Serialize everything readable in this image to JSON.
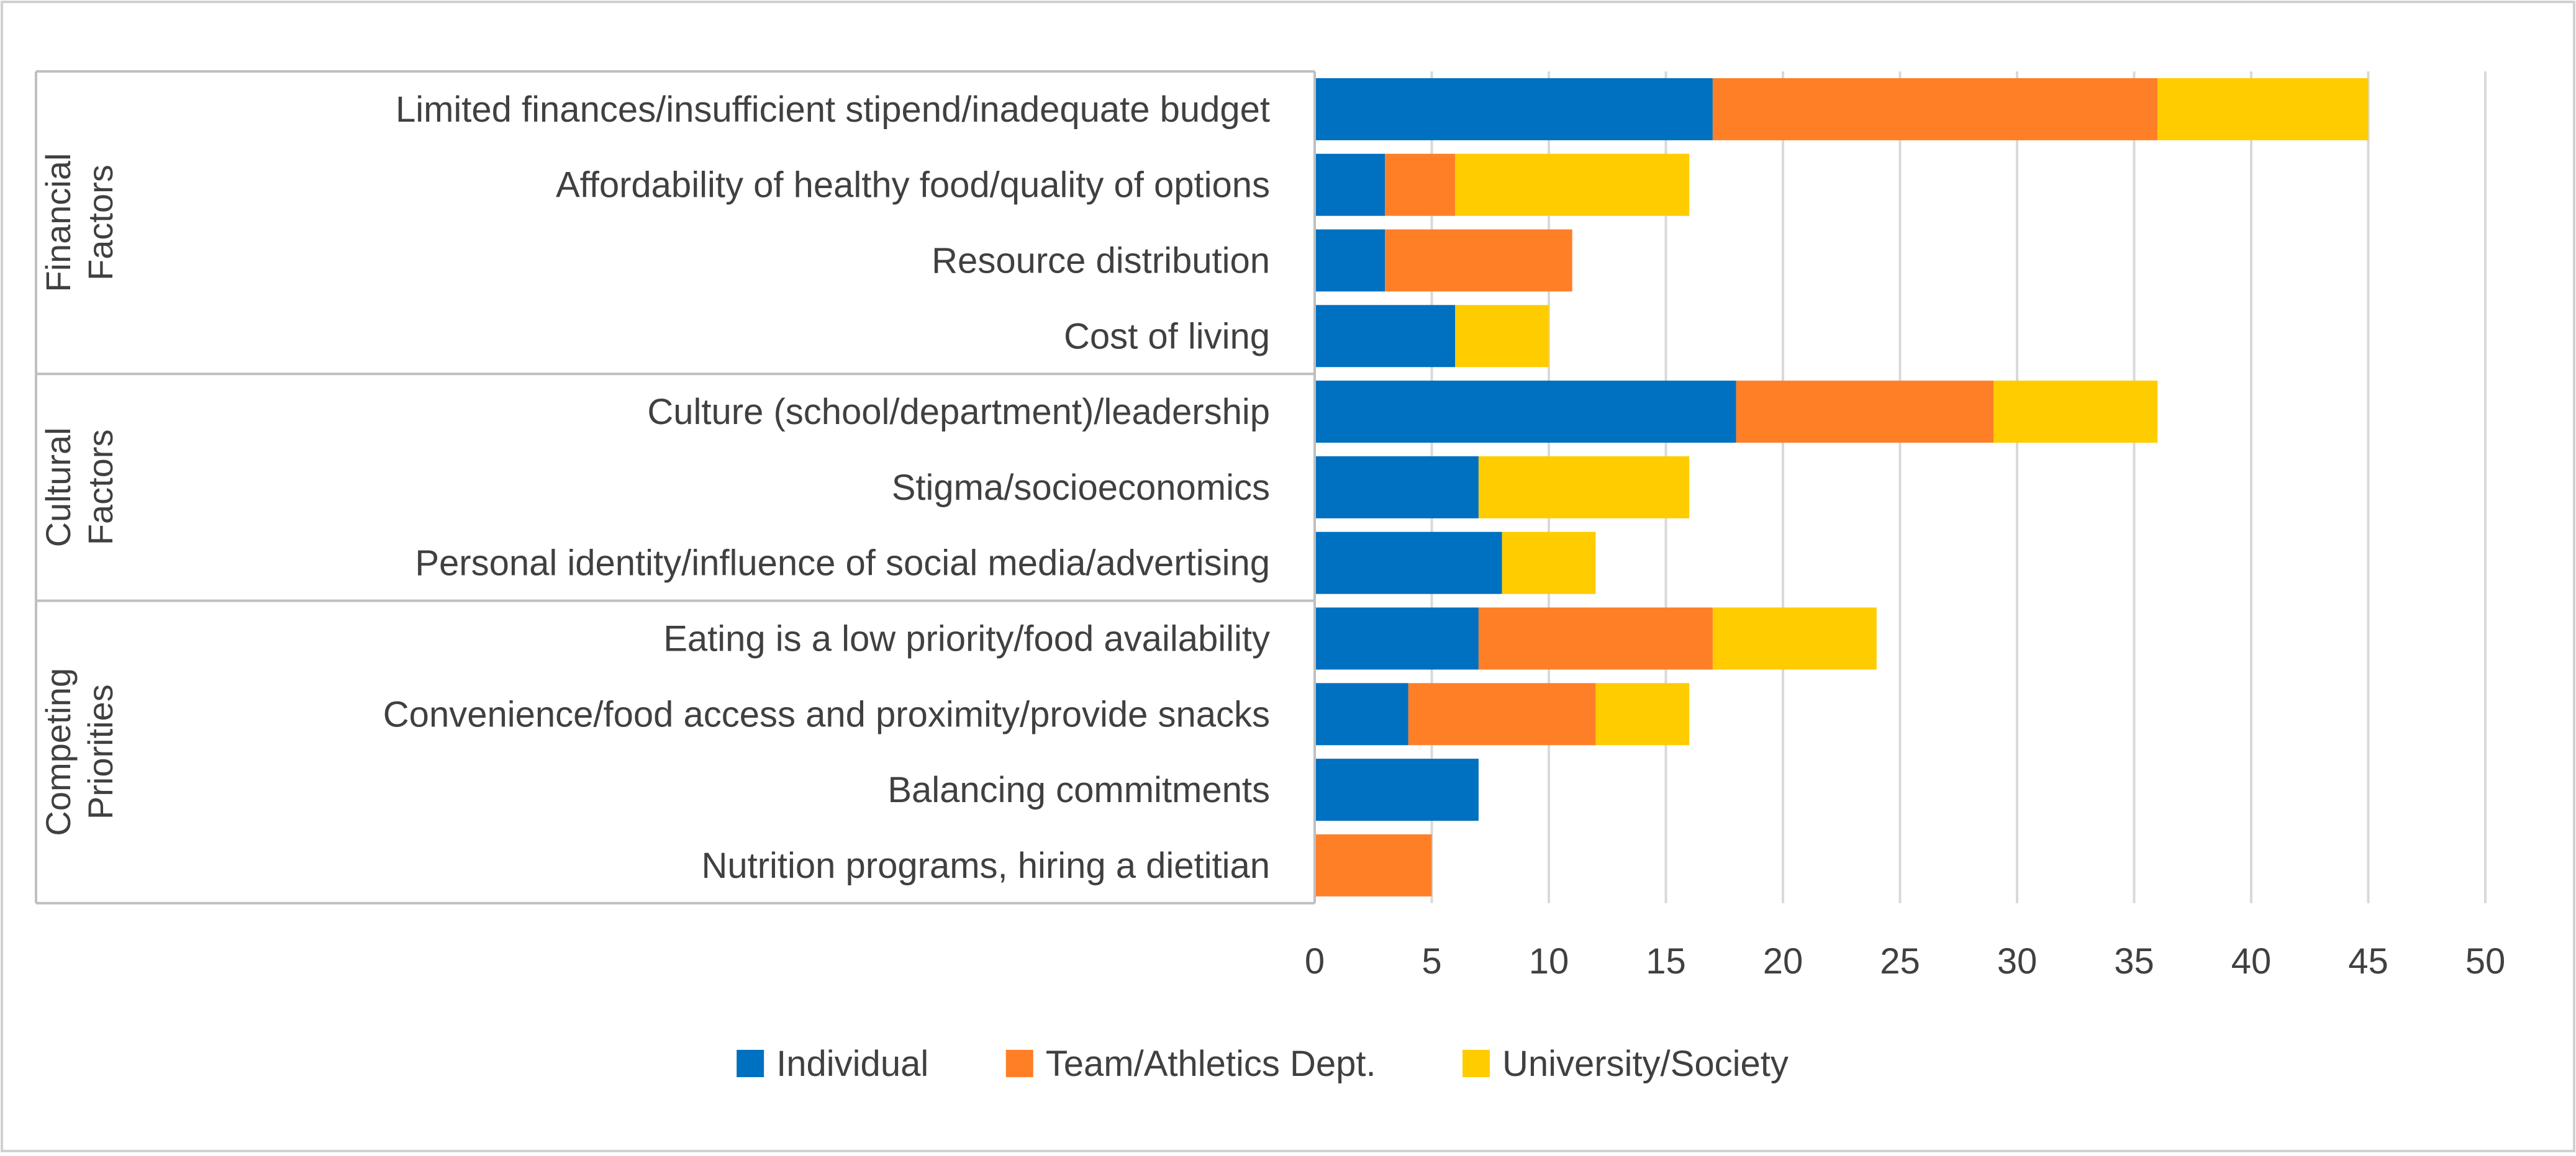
{
  "colors": {
    "individual": "#0070C0",
    "team": "#FF7F27",
    "university": "#FFCC00",
    "grid": "#D9D9D9",
    "group_line": "#BFBFBF",
    "text": "#404040",
    "frame": "#D0D0D0"
  },
  "chart_data": {
    "type": "bar",
    "orientation": "horizontal",
    "stacked": true,
    "title": "",
    "xlabel": "",
    "ylabel": "",
    "xlim": [
      0,
      50
    ],
    "xticks": [
      0,
      5,
      10,
      15,
      20,
      25,
      30,
      35,
      40,
      45,
      50
    ],
    "grid": true,
    "legend_position": "bottom",
    "groups": [
      {
        "label": "Financial Factors",
        "lines": [
          "Financial",
          "Factors"
        ],
        "count": 4
      },
      {
        "label": "Cultural Factors",
        "lines": [
          "Cultural",
          "Factors"
        ],
        "count": 3
      },
      {
        "label": "Competing Priorities",
        "lines": [
          "Competing",
          "Priorities"
        ],
        "count": 4
      }
    ],
    "categories": [
      "Limited finances/insufficient stipend/inadequate budget",
      "Affordability of healthy food/quality of options",
      "Resource distribution",
      "Cost of living",
      "Culture (school/department)/leadership",
      "Stigma/socioeconomics",
      "Personal identity/influence of social media/advertising",
      "Eating is a low priority/food availability",
      "Convenience/food access and proximity/provide snacks",
      "Balancing commitments",
      "Nutrition programs, hiring a dietitian"
    ],
    "series": [
      {
        "name": "Individual",
        "color_key": "individual",
        "values": [
          17,
          3,
          3,
          6,
          18,
          7,
          8,
          7,
          4,
          7,
          0
        ]
      },
      {
        "name": "Team/Athletics Dept.",
        "color_key": "team",
        "values": [
          19,
          3,
          8,
          0,
          11,
          0,
          0,
          10,
          8,
          0,
          5
        ]
      },
      {
        "name": "University/Society",
        "color_key": "university",
        "values": [
          9,
          10,
          0,
          4,
          7,
          9,
          4,
          7,
          4,
          0,
          0
        ]
      }
    ]
  }
}
